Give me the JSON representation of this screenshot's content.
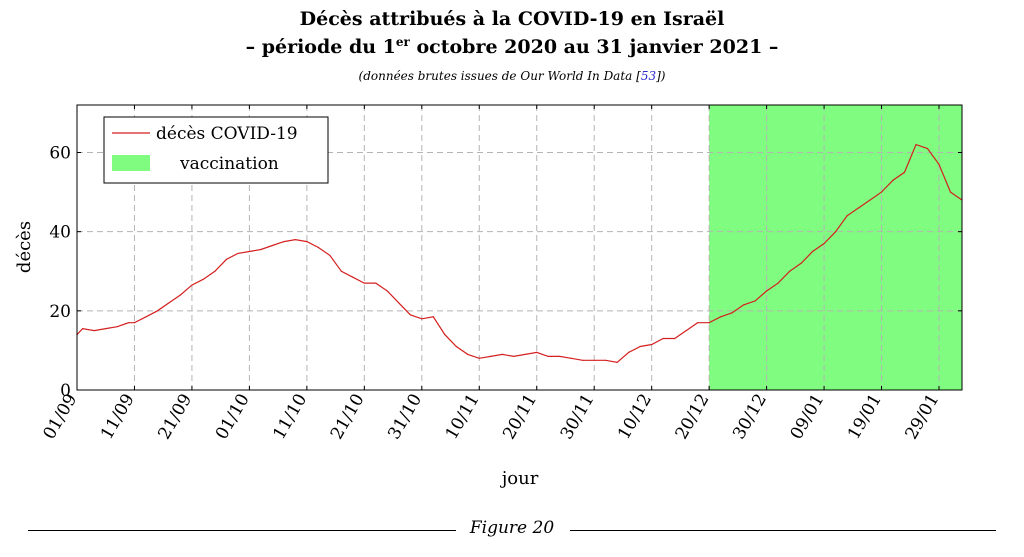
{
  "title_line1": "Décès attribués à la COVID-19 en Israël",
  "title_line2_before": "– période du 1",
  "title_line2_sup": "er",
  "title_line2_after": " octobre 2020 au 31 janvier 2021 –",
  "subtitle_text": "(données brutes issues de Our World In Data [",
  "subtitle_ref": "53",
  "subtitle_end": "])",
  "caption": "Figure 20",
  "chart_data": {
    "type": "line",
    "title": "Décès attribués à la COVID-19 en Israël",
    "xlabel": "jour",
    "ylabel": "décès",
    "x_start": "2020-09-01",
    "x_end": "2021-02-02",
    "xlim": [
      "2020-09-01",
      "2021-02-02"
    ],
    "ylim": [
      0,
      72
    ],
    "xticks": [
      "01/09",
      "11/09",
      "21/09",
      "01/10",
      "11/10",
      "21/10",
      "31/10",
      "10/11",
      "20/11",
      "30/11",
      "10/12",
      "20/12",
      "30/12",
      "09/01",
      "19/01",
      "29/01"
    ],
    "yticks": [
      0,
      20,
      40,
      60
    ],
    "grid": true,
    "legend_position": "top-left",
    "colors": {
      "line": "#d42020",
      "vaccination_fill": "#80fc80",
      "grid": "#b4b4b4"
    },
    "series": [
      {
        "name": "décès COVID-19",
        "x": [
          "2020-09-01",
          "2020-09-02",
          "2020-09-04",
          "2020-09-06",
          "2020-09-08",
          "2020-09-10",
          "2020-09-11",
          "2020-09-13",
          "2020-09-15",
          "2020-09-17",
          "2020-09-19",
          "2020-09-21",
          "2020-09-23",
          "2020-09-25",
          "2020-09-27",
          "2020-09-29",
          "2020-10-01",
          "2020-10-03",
          "2020-10-05",
          "2020-10-07",
          "2020-10-09",
          "2020-10-11",
          "2020-10-13",
          "2020-10-15",
          "2020-10-17",
          "2020-10-19",
          "2020-10-21",
          "2020-10-23",
          "2020-10-25",
          "2020-10-27",
          "2020-10-29",
          "2020-10-31",
          "2020-11-02",
          "2020-11-04",
          "2020-11-06",
          "2020-11-08",
          "2020-11-10",
          "2020-11-12",
          "2020-11-14",
          "2020-11-16",
          "2020-11-18",
          "2020-11-20",
          "2020-11-22",
          "2020-11-24",
          "2020-11-26",
          "2020-11-28",
          "2020-11-30",
          "2020-12-02",
          "2020-12-04",
          "2020-12-06",
          "2020-12-08",
          "2020-12-10",
          "2020-12-12",
          "2020-12-14",
          "2020-12-16",
          "2020-12-18",
          "2020-12-20",
          "2020-12-22",
          "2020-12-24",
          "2020-12-26",
          "2020-12-28",
          "2020-12-30",
          "2021-01-01",
          "2021-01-03",
          "2021-01-05",
          "2021-01-07",
          "2021-01-09",
          "2021-01-11",
          "2021-01-13",
          "2021-01-15",
          "2021-01-17",
          "2021-01-19",
          "2021-01-21",
          "2021-01-23",
          "2021-01-25",
          "2021-01-27",
          "2021-01-29",
          "2021-01-31",
          "2021-02-02"
        ],
        "values": [
          14,
          15.5,
          15,
          15.5,
          16,
          17,
          17,
          18.5,
          20,
          22,
          24,
          26.5,
          28,
          30,
          33,
          34.5,
          35,
          35.5,
          36.5,
          37.5,
          38,
          37.5,
          36,
          34,
          30,
          28.5,
          27,
          27,
          25,
          22,
          19,
          18,
          18.5,
          14,
          11,
          9,
          8,
          8.5,
          9,
          8.5,
          9,
          9.5,
          8.5,
          8.5,
          8,
          7.5,
          7.5,
          7.5,
          7,
          9.5,
          11,
          11.5,
          13,
          13,
          15,
          17,
          17,
          18.5,
          19.5,
          21.5,
          22.5,
          25,
          27,
          30,
          32,
          35,
          37,
          40,
          44,
          46,
          48,
          50,
          53,
          55,
          62,
          61,
          57,
          50,
          48
        ]
      }
    ],
    "shaded_regions": [
      {
        "name": "vaccination",
        "x_start": "2020-12-20",
        "x_end": "2021-02-02"
      }
    ]
  }
}
